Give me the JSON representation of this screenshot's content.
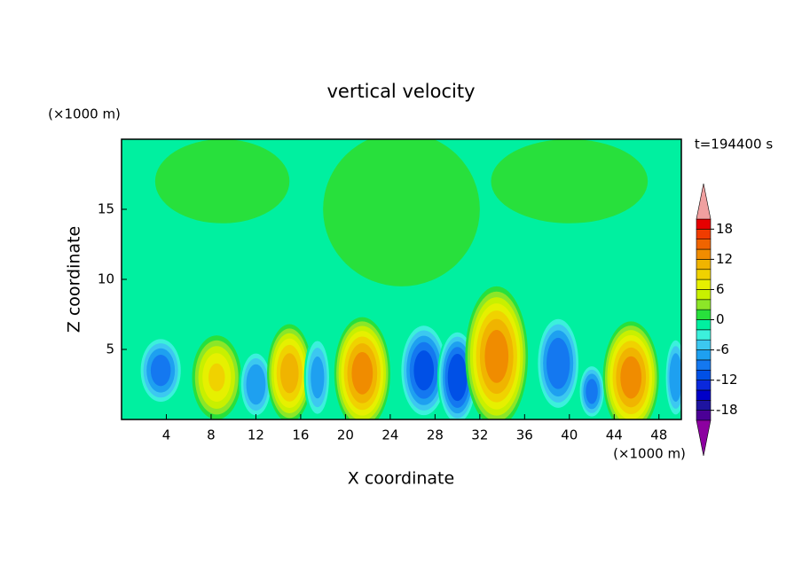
{
  "chart_data": {
    "type": "contour",
    "title": "vertical velocity",
    "time_label": "t=194400 s",
    "x_label": "X coordinate",
    "y_label": "Z coordinate",
    "x_unit": "(×1000 m)",
    "y_unit": "(×1000 m)",
    "xlim": [
      0,
      50
    ],
    "xticks": [
      4,
      8,
      12,
      16,
      20,
      24,
      28,
      32,
      36,
      40,
      44,
      48
    ],
    "ylim": [
      0,
      20
    ],
    "yticks": [
      5,
      10,
      15
    ],
    "background": -1,
    "levels": [
      -20,
      -18,
      -16,
      -14,
      -12,
      -10,
      -8,
      -6,
      -4,
      -2,
      0,
      2,
      4,
      6,
      8,
      10,
      12,
      14,
      16,
      18,
      20
    ],
    "colors": [
      "#4b0096",
      "#1e14a0",
      "#0000c8",
      "#0a28dc",
      "#0050e6",
      "#1478f0",
      "#1ea0f0",
      "#3cc8f0",
      "#3cf0dc",
      "#00f0a0",
      "#28e03c",
      "#8ce628",
      "#c8f000",
      "#e6f000",
      "#f0d200",
      "#f0b400",
      "#f08c00",
      "#f06400",
      "#f03c00",
      "#e60000"
    ],
    "under_color": "#8c00a0",
    "over_color": "#f0a0a0",
    "colorbar_ticks": [
      -18,
      -12,
      -6,
      0,
      6,
      12,
      18
    ],
    "cells": [
      {
        "x": 25,
        "z": 15,
        "width": 14,
        "height": 11,
        "peak": 1
      },
      {
        "x": 9,
        "z": 17,
        "width": 12,
        "height": 6,
        "peak": 1
      },
      {
        "x": 40,
        "z": 17,
        "width": 14,
        "height": 6,
        "peak": 1
      },
      {
        "x": 3.5,
        "z": 3.5,
        "width": 4,
        "height": 5,
        "peak": -10
      },
      {
        "x": 8.5,
        "z": 3,
        "width": 4.4,
        "height": 6,
        "peak": 9
      },
      {
        "x": 12,
        "z": 2.5,
        "width": 3,
        "height": 5,
        "peak": -9
      },
      {
        "x": 15,
        "z": 3.3,
        "width": 4,
        "height": 7,
        "peak": 12
      },
      {
        "x": 17.5,
        "z": 3,
        "width": 2.4,
        "height": 6,
        "peak": -8
      },
      {
        "x": 21.5,
        "z": 3.3,
        "width": 5,
        "height": 8,
        "peak": 14
      },
      {
        "x": 27,
        "z": 3.5,
        "width": 4.4,
        "height": 7,
        "peak": -12
      },
      {
        "x": 30,
        "z": 3,
        "width": 3.6,
        "height": 7,
        "peak": -13
      },
      {
        "x": 33.5,
        "z": 4.5,
        "width": 5.6,
        "height": 10,
        "peak": 14
      },
      {
        "x": 39,
        "z": 4,
        "width": 4,
        "height": 7,
        "peak": -11
      },
      {
        "x": 42,
        "z": 2,
        "width": 2.4,
        "height": 4,
        "peak": -10
      },
      {
        "x": 45.5,
        "z": 3,
        "width": 5,
        "height": 8,
        "peak": 14
      },
      {
        "x": 49.5,
        "z": 3,
        "width": 2,
        "height": 6,
        "peak": -9
      }
    ]
  }
}
